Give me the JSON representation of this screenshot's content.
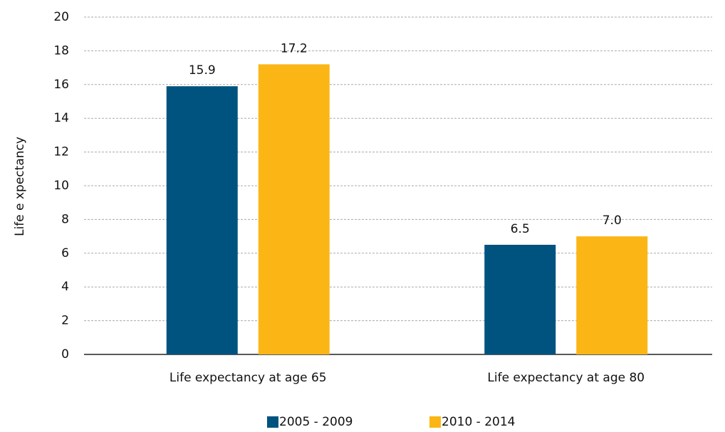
{
  "chart_data": {
    "type": "bar",
    "ylabel": "Life e xpectancy",
    "categories": [
      "Life expectancy at age 65",
      "Life expectancy at age 80"
    ],
    "series": [
      {
        "name": "2005 - 2009",
        "color": "#00527f",
        "values": [
          15.9,
          6.5
        ],
        "value_labels": [
          "15.9",
          "6.5"
        ]
      },
      {
        "name": "2010 - 2014",
        "color": "#fbb616",
        "values": [
          17.2,
          7.0
        ],
        "value_labels": [
          "17.2",
          "7.0"
        ]
      }
    ],
    "ylim": [
      0,
      20
    ],
    "yticks": [
      0,
      2,
      4,
      6,
      8,
      10,
      12,
      14,
      16,
      18,
      20
    ],
    "grid": true,
    "legend": "bottom"
  }
}
